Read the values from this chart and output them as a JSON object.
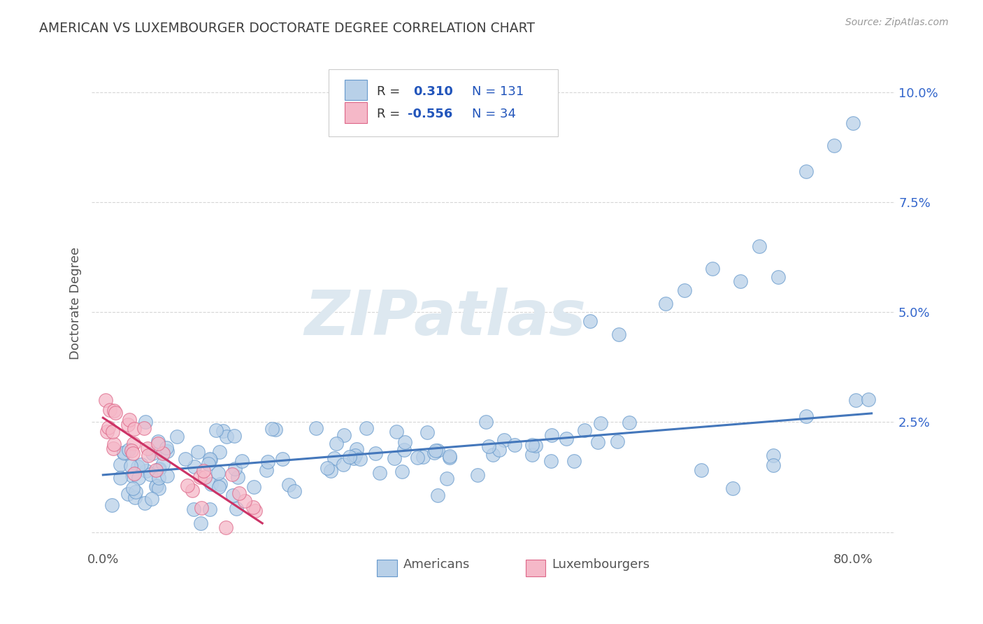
{
  "title": "AMERICAN VS LUXEMBOURGER DOCTORATE DEGREE CORRELATION CHART",
  "source": "Source: ZipAtlas.com",
  "ylabel": "Doctorate Degree",
  "american_R": 0.31,
  "american_N": 131,
  "luxembourger_R": -0.556,
  "luxembourger_N": 34,
  "american_color": "#b8d0e8",
  "luxembourger_color": "#f5b8c8",
  "american_edge_color": "#6699cc",
  "luxembourger_edge_color": "#dd6688",
  "american_line_color": "#4477bb",
  "luxembourger_line_color": "#cc3366",
  "legend_R_color": "#2255bb",
  "background_color": "#ffffff",
  "grid_color": "#cccccc",
  "title_color": "#404040",
  "watermark_color": "#dde8f0",
  "tick_label_color_y": "#3366cc",
  "tick_label_color_x": "#555555"
}
